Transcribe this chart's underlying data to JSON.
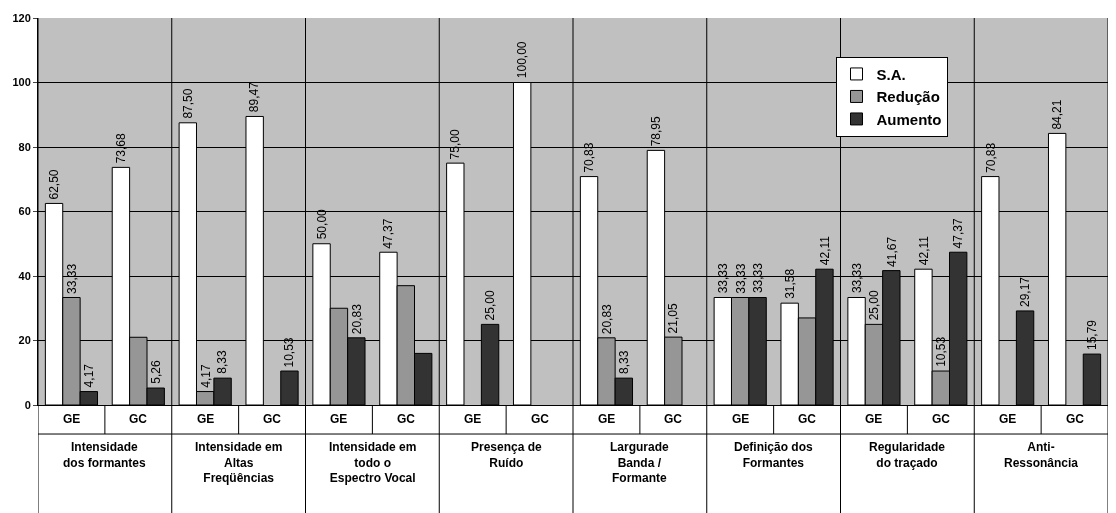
{
  "chart_data": {
    "type": "bar",
    "categories": [
      "GE",
      "GC",
      "GE",
      "GC",
      "GE",
      "GC",
      "GE",
      "GC",
      "GE",
      "GC",
      "GE",
      "GC",
      "GE",
      "GC",
      "GE",
      "GC"
    ],
    "series": [
      {
        "name": "S.A.",
        "color": "#ffffff",
        "values": [
          62.5,
          73.68,
          87.5,
          89.47,
          50,
          47.37,
          75,
          100,
          70.83,
          78.95,
          33.33,
          31.58,
          33.33,
          42.11,
          70.83,
          84.21
        ],
        "value_labels": [
          "62,50",
          "73,68",
          "87,50",
          "89,47",
          "50,00",
          "47,37",
          "75,00",
          "100,00",
          "70,83",
          "78,95",
          "33,33",
          "31,58",
          "33,33",
          "42,11",
          "70,83",
          "84,21"
        ]
      },
      {
        "name": "Redução",
        "color": "#969696",
        "values": [
          33.33,
          21,
          4.17,
          0,
          30,
          37,
          0,
          0,
          20.83,
          21.05,
          33.33,
          27,
          25,
          10.53,
          0,
          0
        ],
        "value_labels": [
          "33,33",
          null,
          "4,17",
          null,
          null,
          null,
          null,
          null,
          "20,83",
          "21,05",
          "33,33",
          null,
          "25,00",
          "10,53",
          null,
          null
        ]
      },
      {
        "name": "Aumento",
        "color": "#333333",
        "values": [
          4.17,
          5.26,
          8.33,
          10.53,
          20.83,
          16,
          25,
          0,
          8.33,
          0,
          33.33,
          42.11,
          41.67,
          47.37,
          29.17,
          15.79
        ],
        "value_labels": [
          "4,17",
          "5,26",
          "8,33",
          "10,53",
          "20,83",
          null,
          "25,00",
          null,
          "8,33",
          null,
          "33,33",
          "42,11",
          "41,67",
          "47,37",
          "29,17",
          "15,79"
        ]
      }
    ],
    "annotations": [
      "Intensidade dos formantes",
      "Intensidade em Altas Freqüências",
      "Intensidade em todo o Espectro Vocal",
      "Presença de Ruído",
      "Largurade Banda / Formante",
      "Definição dos Formantes",
      "Regularidade do traçado",
      "Anti-Ressonância"
    ],
    "ylim": [
      0,
      120
    ],
    "yticks": [
      0,
      20,
      40,
      60,
      80,
      100,
      120
    ],
    "grid": "y",
    "legend": "top right"
  }
}
